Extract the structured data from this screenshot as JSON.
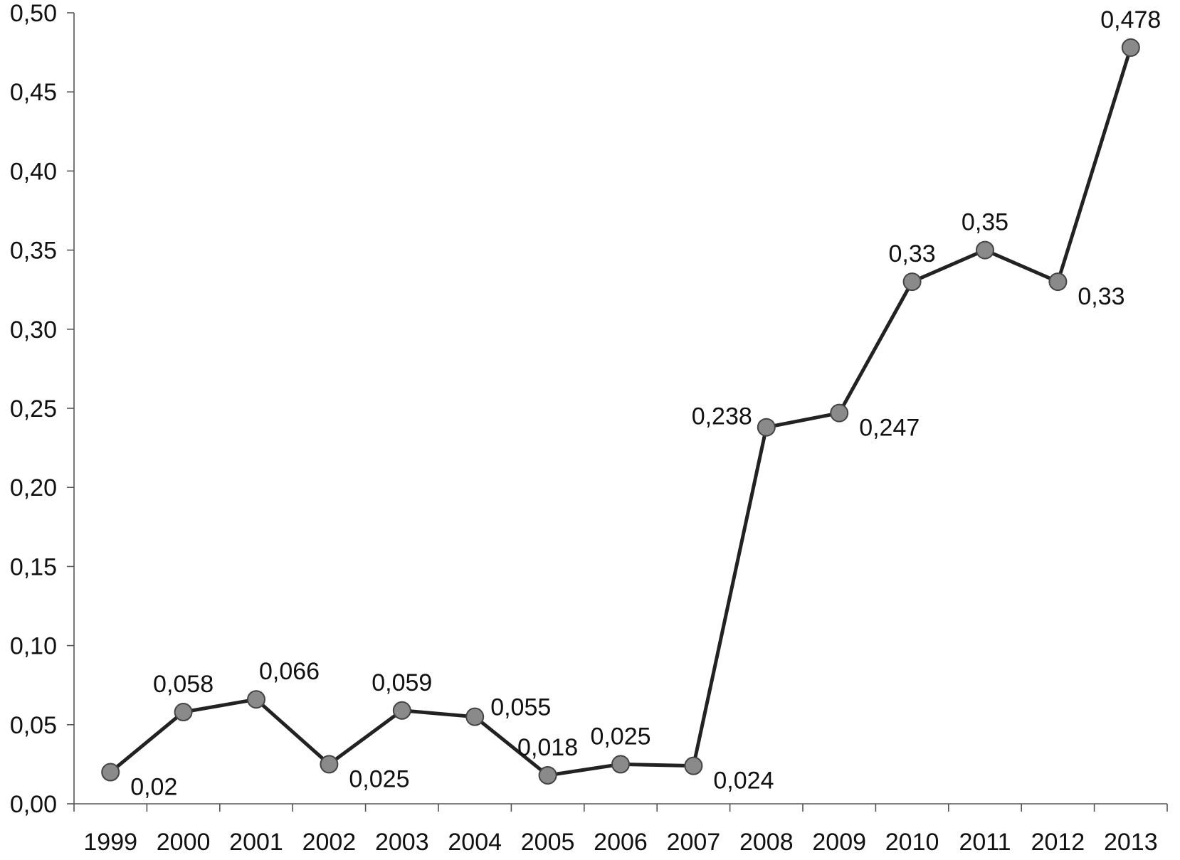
{
  "chart_data": {
    "type": "line",
    "x": [
      "1999",
      "2000",
      "2001",
      "2002",
      "2003",
      "2004",
      "2005",
      "2006",
      "2007",
      "2008",
      "2009",
      "2010",
      "2011",
      "2012",
      "2013"
    ],
    "series": [
      {
        "values": [
          0.02,
          0.058,
          0.066,
          0.025,
          0.059,
          0.055,
          0.018,
          0.025,
          0.024,
          0.238,
          0.247,
          0.33,
          0.35,
          0.33,
          0.478
        ],
        "labels": [
          "0,02",
          "0,058",
          "0,066",
          "0,025",
          "0,059",
          "0,055",
          "0,018",
          "0,025",
          "0,024",
          "0,238",
          "0,247",
          "0,33",
          "0,35",
          "0,33",
          "0,478"
        ],
        "label_positions": [
          "below-right",
          "above",
          "above-right",
          "below-right",
          "above",
          "right",
          "above",
          "above",
          "below-right",
          "left",
          "below-right",
          "above",
          "above",
          "below-right",
          "above"
        ]
      }
    ],
    "ylim": [
      0,
      0.5
    ],
    "yticks": [
      0,
      0.05,
      0.1,
      0.15,
      0.2,
      0.25,
      0.3,
      0.35,
      0.4,
      0.45,
      0.5
    ],
    "ytick_labels": [
      "0,00",
      "0,05",
      "0,10",
      "0,15",
      "0,20",
      "0,25",
      "0,30",
      "0,35",
      "0,40",
      "0,45",
      "0,50"
    ],
    "title": "",
    "xlabel": "",
    "ylabel": "",
    "grid": false,
    "colors": {
      "line": "#222222",
      "marker_fill": "#8a8a8a",
      "marker_stroke": "#444444",
      "axis": "#555555",
      "text": "#111111"
    }
  }
}
